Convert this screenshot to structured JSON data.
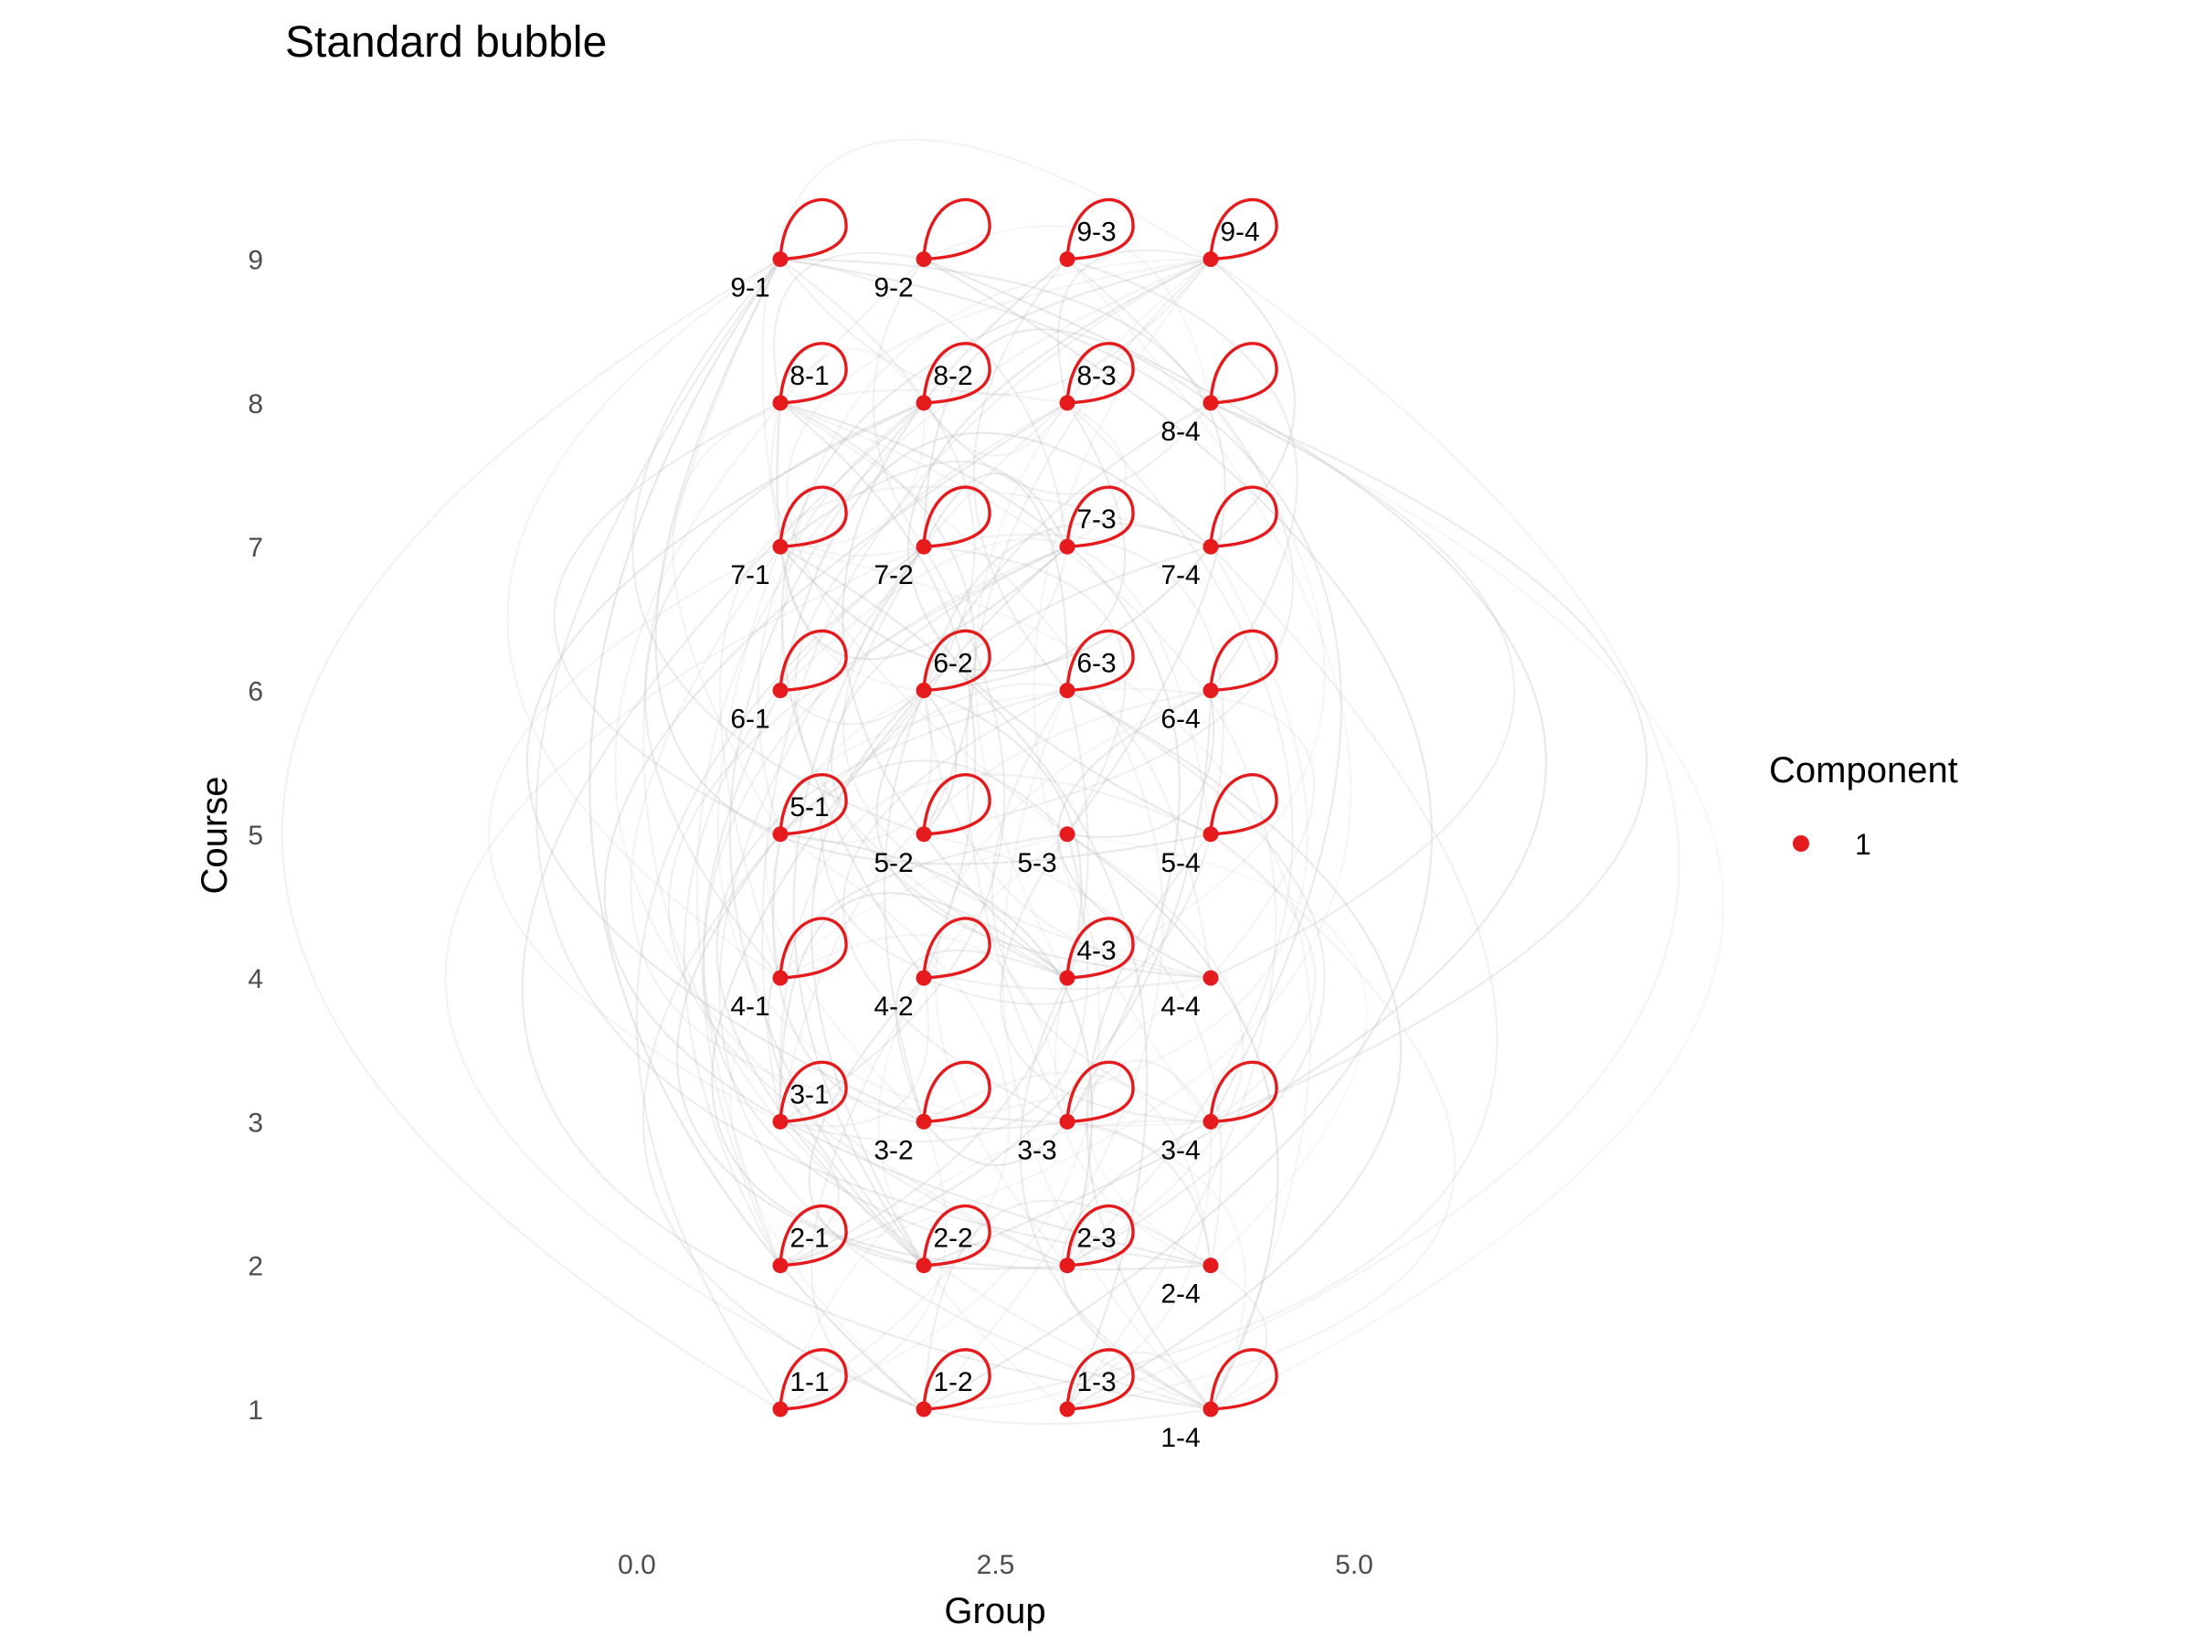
{
  "chart_data": {
    "type": "scatter",
    "title": "Standard bubble",
    "xlabel": "Group",
    "ylabel": "Course",
    "xlim": [
      -2.4,
      7.4
    ],
    "ylim": [
      0.3,
      9.8
    ],
    "x_ticks": [
      0.0,
      2.5,
      5.0
    ],
    "x_tick_labels": [
      "0.0",
      "2.5",
      "5.0"
    ],
    "y_ticks": [
      1,
      2,
      3,
      4,
      5,
      6,
      7,
      8,
      9
    ],
    "y_tick_labels": [
      "1",
      "2",
      "3",
      "4",
      "5",
      "6",
      "7",
      "8",
      "9"
    ],
    "grid": false,
    "legend": {
      "title": "Component",
      "position": "right",
      "entries": [
        {
          "label": "1",
          "color": "#e41a1c"
        }
      ]
    },
    "colors": {
      "node": "#e41a1c",
      "self_loop": "#e41a1c",
      "edge": "#bdbdbd"
    },
    "points": [
      {
        "label": "1-1",
        "x": 1,
        "y": 1,
        "loop": true,
        "label_pos": "above"
      },
      {
        "label": "1-2",
        "x": 2,
        "y": 1,
        "loop": true,
        "label_pos": "above"
      },
      {
        "label": "1-3",
        "x": 3,
        "y": 1,
        "loop": true,
        "label_pos": "above"
      },
      {
        "label": "1-4",
        "x": 4,
        "y": 1,
        "loop": true,
        "label_pos": "below"
      },
      {
        "label": "2-1",
        "x": 1,
        "y": 2,
        "loop": true,
        "label_pos": "above"
      },
      {
        "label": "2-2",
        "x": 2,
        "y": 2,
        "loop": true,
        "label_pos": "above"
      },
      {
        "label": "2-3",
        "x": 3,
        "y": 2,
        "loop": true,
        "label_pos": "above"
      },
      {
        "label": "2-4",
        "x": 4,
        "y": 2,
        "loop": false,
        "label_pos": "below"
      },
      {
        "label": "3-1",
        "x": 1,
        "y": 3,
        "loop": true,
        "label_pos": "above"
      },
      {
        "label": "3-2",
        "x": 2,
        "y": 3,
        "loop": true,
        "label_pos": "below"
      },
      {
        "label": "3-3",
        "x": 3,
        "y": 3,
        "loop": true,
        "label_pos": "below"
      },
      {
        "label": "3-4",
        "x": 4,
        "y": 3,
        "loop": true,
        "label_pos": "below"
      },
      {
        "label": "4-1",
        "x": 1,
        "y": 4,
        "loop": true,
        "label_pos": "below"
      },
      {
        "label": "4-2",
        "x": 2,
        "y": 4,
        "loop": true,
        "label_pos": "below"
      },
      {
        "label": "4-3",
        "x": 3,
        "y": 4,
        "loop": true,
        "label_pos": "above"
      },
      {
        "label": "4-4",
        "x": 4,
        "y": 4,
        "loop": false,
        "label_pos": "below"
      },
      {
        "label": "5-1",
        "x": 1,
        "y": 5,
        "loop": true,
        "label_pos": "above"
      },
      {
        "label": "5-2",
        "x": 2,
        "y": 5,
        "loop": true,
        "label_pos": "below"
      },
      {
        "label": "5-3",
        "x": 3,
        "y": 5,
        "loop": false,
        "label_pos": "below"
      },
      {
        "label": "5-4",
        "x": 4,
        "y": 5,
        "loop": true,
        "label_pos": "below"
      },
      {
        "label": "6-1",
        "x": 1,
        "y": 6,
        "loop": true,
        "label_pos": "below"
      },
      {
        "label": "6-2",
        "x": 2,
        "y": 6,
        "loop": true,
        "label_pos": "above"
      },
      {
        "label": "6-3",
        "x": 3,
        "y": 6,
        "loop": true,
        "label_pos": "above"
      },
      {
        "label": "6-4",
        "x": 4,
        "y": 6,
        "loop": true,
        "label_pos": "below"
      },
      {
        "label": "7-1",
        "x": 1,
        "y": 7,
        "loop": true,
        "label_pos": "below"
      },
      {
        "label": "7-2",
        "x": 2,
        "y": 7,
        "loop": true,
        "label_pos": "below"
      },
      {
        "label": "7-3",
        "x": 3,
        "y": 7,
        "loop": true,
        "label_pos": "above"
      },
      {
        "label": "7-4",
        "x": 4,
        "y": 7,
        "loop": true,
        "label_pos": "below"
      },
      {
        "label": "8-1",
        "x": 1,
        "y": 8,
        "loop": true,
        "label_pos": "above"
      },
      {
        "label": "8-2",
        "x": 2,
        "y": 8,
        "loop": true,
        "label_pos": "above"
      },
      {
        "label": "8-3",
        "x": 3,
        "y": 8,
        "loop": true,
        "label_pos": "above"
      },
      {
        "label": "8-4",
        "x": 4,
        "y": 8,
        "loop": true,
        "label_pos": "below"
      },
      {
        "label": "9-1",
        "x": 1,
        "y": 9,
        "loop": true,
        "label_pos": "below"
      },
      {
        "label": "9-2",
        "x": 2,
        "y": 9,
        "loop": true,
        "label_pos": "below"
      },
      {
        "label": "9-3",
        "x": 3,
        "y": 9,
        "loop": true,
        "label_pos": "above"
      },
      {
        "label": "9-4",
        "x": 4,
        "y": 9,
        "loop": true,
        "label_pos": "above"
      }
    ]
  }
}
